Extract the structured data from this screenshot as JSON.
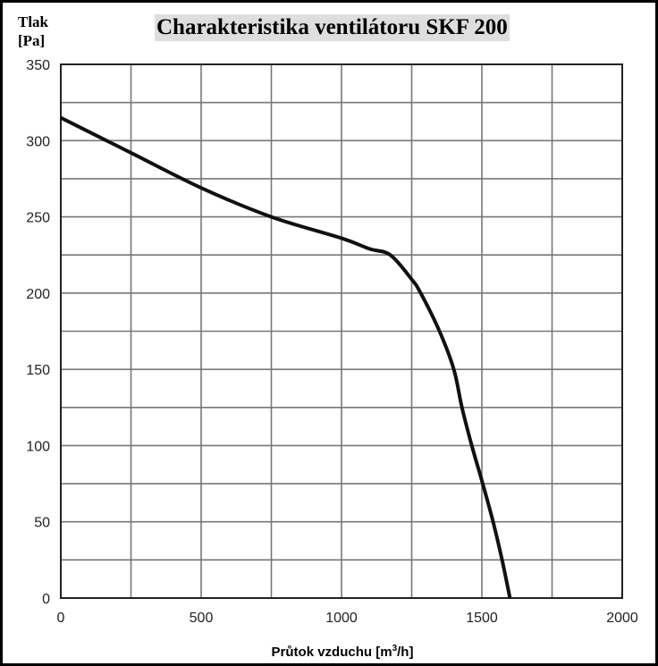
{
  "chart_data": {
    "type": "line",
    "title": "Charakteristika ventilátoru SKF 200",
    "ylabel_lines": [
      "Tlak",
      "[Pa]"
    ],
    "xlabel": "Průtok vzduchu [m",
    "xlabel_sup": "3",
    "xlabel_end": "/h]",
    "xlim": [
      0,
      2000
    ],
    "ylim": [
      0,
      350
    ],
    "xticks": [
      0,
      500,
      1000,
      1500,
      2000
    ],
    "yticks": [
      0,
      50,
      100,
      150,
      200,
      250,
      300,
      350
    ],
    "x_grid_step": 250,
    "y_grid_step": 25,
    "grid": true,
    "line_color": "#111111",
    "series": [
      {
        "x": [
          0,
          250,
          500,
          750,
          1000,
          1100,
          1174,
          1250,
          1282,
          1349,
          1400,
          1429,
          1464,
          1503,
          1540,
          1572,
          1600
        ],
        "y": [
          315,
          292,
          269,
          250,
          236,
          229,
          225,
          209,
          200,
          175,
          150,
          125,
          100,
          75,
          50,
          25,
          0
        ]
      }
    ]
  }
}
